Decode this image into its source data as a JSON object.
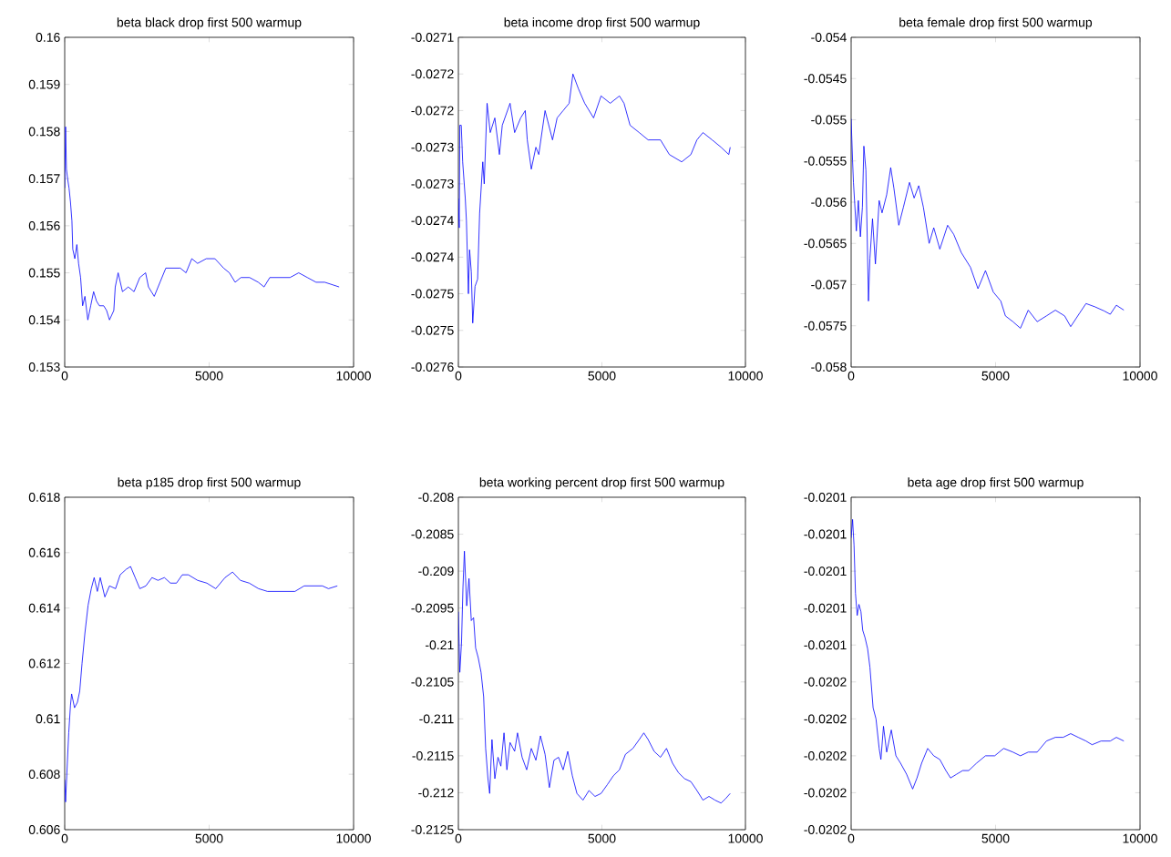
{
  "chart_data": [
    {
      "type": "line",
      "title": "beta black drop first 500 warmup",
      "xlim": [
        0,
        10000
      ],
      "xticks": [
        0,
        5000,
        10000
      ],
      "ylim": [
        0.153,
        0.16
      ],
      "yticks": [
        0.153,
        0.154,
        0.155,
        0.156,
        0.157,
        0.158,
        0.159,
        0.16
      ],
      "series": [
        {
          "color": "#0000ff",
          "x": [
            0,
            30,
            60,
            100,
            150,
            200,
            250,
            280,
            350,
            420,
            480,
            550,
            620,
            700,
            800,
            900,
            1000,
            1100,
            1200,
            1350,
            1450,
            1550,
            1700,
            1750,
            1850,
            2000,
            2200,
            2400,
            2600,
            2800,
            2900,
            3000,
            3100,
            3300,
            3500,
            3700,
            4000,
            4200,
            4400,
            4600,
            4900,
            5200,
            5500,
            5700,
            5900,
            6100,
            6400,
            6700,
            6900,
            7100,
            7400,
            7800,
            8100,
            8400,
            8700,
            9000,
            9500
          ],
          "values": [
            0.1568,
            0.1581,
            0.1572,
            0.157,
            0.1568,
            0.1565,
            0.1561,
            0.1555,
            0.1553,
            0.1556,
            0.1552,
            0.1549,
            0.1543,
            0.1545,
            0.154,
            0.1543,
            0.1546,
            0.1544,
            0.1543,
            0.1543,
            0.1542,
            0.154,
            0.1542,
            0.1547,
            0.155,
            0.1546,
            0.1547,
            0.1546,
            0.1549,
            0.155,
            0.1547,
            0.1546,
            0.1545,
            0.1548,
            0.1551,
            0.1551,
            0.1551,
            0.155,
            0.1553,
            0.1552,
            0.1553,
            0.1553,
            0.1551,
            0.155,
            0.1548,
            0.1549,
            0.1549,
            0.1548,
            0.1547,
            0.1549,
            0.1549,
            0.1549,
            0.155,
            0.1549,
            0.1548,
            0.1548,
            0.1547
          ]
        }
      ]
    },
    {
      "type": "line",
      "title": "beta income drop first 500 warmup",
      "xlim": [
        0,
        10000
      ],
      "xticks": [
        0,
        5000,
        10000
      ],
      "ylim": [
        -0.02755,
        -0.0271
      ],
      "yticks": [
        {
          "value": -0.02755,
          "label": "-0.0276"
        },
        {
          "value": -0.0275,
          "label": "-0.0275"
        },
        {
          "value": -0.02745,
          "label": "-0.0275"
        },
        {
          "value": -0.0274,
          "label": "-0.0274"
        },
        {
          "value": -0.02735,
          "label": "-0.0274"
        },
        {
          "value": -0.0273,
          "label": "-0.0273"
        },
        {
          "value": -0.02725,
          "label": "-0.0273"
        },
        {
          "value": -0.0272,
          "label": "-0.0272"
        },
        {
          "value": -0.02715,
          "label": "-0.0272"
        },
        {
          "value": -0.0271,
          "label": "-0.0271"
        }
      ],
      "series": [
        {
          "color": "#0000ff",
          "x": [
            0,
            30,
            50,
            100,
            150,
            240,
            280,
            350,
            390,
            450,
            500,
            580,
            670,
            740,
            850,
            900,
            1000,
            1110,
            1270,
            1430,
            1530,
            1800,
            1960,
            2170,
            2330,
            2400,
            2540,
            2700,
            2800,
            3020,
            3280,
            3440,
            3650,
            3860,
            3990,
            4180,
            4400,
            4710,
            4970,
            5290,
            5610,
            5770,
            5980,
            6300,
            6610,
            7040,
            7350,
            7780,
            8100,
            8310,
            8520,
            8840,
            9150,
            9420,
            9470
          ],
          "values": [
            -0.02732,
            -0.02736,
            -0.02722,
            -0.02722,
            -0.02727,
            -0.02732,
            -0.02735,
            -0.02745,
            -0.02739,
            -0.02742,
            -0.02749,
            -0.02744,
            -0.02743,
            -0.02734,
            -0.02727,
            -0.0273,
            -0.02719,
            -0.02723,
            -0.02721,
            -0.02726,
            -0.02722,
            -0.02719,
            -0.02723,
            -0.02721,
            -0.0272,
            -0.02724,
            -0.02728,
            -0.02725,
            -0.02726,
            -0.0272,
            -0.02724,
            -0.02721,
            -0.0272,
            -0.02719,
            -0.02715,
            -0.02717,
            -0.02719,
            -0.02721,
            -0.02718,
            -0.02719,
            -0.02718,
            -0.02719,
            -0.02722,
            -0.02723,
            -0.02724,
            -0.02724,
            -0.02726,
            -0.02727,
            -0.02726,
            -0.02724,
            -0.02723,
            -0.02724,
            -0.02725,
            -0.02726,
            -0.02725
          ]
        }
      ]
    },
    {
      "type": "line",
      "title": "beta female drop first 500 warmup",
      "xlim": [
        0,
        10000
      ],
      "xticks": [
        0,
        5000,
        10000
      ],
      "ylim": [
        -0.058,
        -0.054
      ],
      "yticks": [
        -0.058,
        -0.0575,
        -0.057,
        -0.0565,
        -0.056,
        -0.0555,
        -0.055,
        -0.0545,
        -0.054
      ],
      "series": [
        {
          "color": "#0000ff",
          "x": [
            0,
            50,
            80,
            180,
            250,
            320,
            390,
            440,
            510,
            600,
            650,
            740,
            840,
            970,
            1070,
            1230,
            1370,
            1480,
            1650,
            1810,
            2020,
            2180,
            2340,
            2500,
            2700,
            2860,
            3070,
            3340,
            3550,
            3810,
            4130,
            4390,
            4650,
            4920,
            5180,
            5340,
            5600,
            5860,
            6130,
            6440,
            6760,
            7070,
            7390,
            7600,
            7920,
            8130,
            8440,
            8760,
            8970,
            9180,
            9440
          ],
          "values": [
            -0.05499,
            -0.0555,
            -0.05576,
            -0.05635,
            -0.05598,
            -0.05642,
            -0.05606,
            -0.05532,
            -0.05561,
            -0.0572,
            -0.05668,
            -0.0562,
            -0.05675,
            -0.05598,
            -0.05613,
            -0.05591,
            -0.05558,
            -0.05583,
            -0.05628,
            -0.05606,
            -0.05576,
            -0.05595,
            -0.0558,
            -0.05606,
            -0.0565,
            -0.05631,
            -0.05657,
            -0.05628,
            -0.05639,
            -0.05661,
            -0.05679,
            -0.05705,
            -0.05683,
            -0.05709,
            -0.0572,
            -0.05738,
            -0.05745,
            -0.05753,
            -0.05731,
            -0.05745,
            -0.05738,
            -0.05731,
            -0.05738,
            -0.05751,
            -0.05734,
            -0.05723,
            -0.05727,
            -0.05732,
            -0.05736,
            -0.05725,
            -0.05731
          ]
        }
      ]
    },
    {
      "type": "line",
      "title": "beta p185 drop first 500 warmup",
      "xlim": [
        0,
        10000
      ],
      "xticks": [
        0,
        5000,
        10000
      ],
      "ylim": [
        0.606,
        0.618
      ],
      "yticks": [
        0.606,
        0.608,
        0.61,
        0.612,
        0.614,
        0.616,
        0.618
      ],
      "series": [
        {
          "color": "#0000ff",
          "x": [
            0,
            30,
            90,
            140,
            200,
            240,
            340,
            440,
            520,
            600,
            700,
            810,
            920,
            1020,
            1130,
            1230,
            1390,
            1550,
            1760,
            1920,
            2130,
            2280,
            2440,
            2600,
            2810,
            3020,
            3230,
            3450,
            3660,
            3870,
            4070,
            4280,
            4600,
            4920,
            5230,
            5550,
            5810,
            6080,
            6390,
            6710,
            7020,
            7340,
            7650,
            7970,
            8290,
            8600,
            8920,
            9130,
            9440
          ],
          "values": [
            0.6078,
            0.607,
            0.6084,
            0.6095,
            0.6105,
            0.6109,
            0.6104,
            0.6106,
            0.611,
            0.612,
            0.6131,
            0.6141,
            0.6147,
            0.6151,
            0.6146,
            0.6151,
            0.6144,
            0.6148,
            0.6147,
            0.6152,
            0.6154,
            0.6155,
            0.6151,
            0.6147,
            0.6148,
            0.6151,
            0.615,
            0.6151,
            0.6149,
            0.6149,
            0.6152,
            0.6152,
            0.615,
            0.6149,
            0.6147,
            0.6151,
            0.6153,
            0.615,
            0.6149,
            0.6147,
            0.6146,
            0.6146,
            0.6146,
            0.6146,
            0.6148,
            0.6148,
            0.6148,
            0.6147,
            0.6148
          ]
        }
      ]
    },
    {
      "type": "line",
      "title": "beta working percent drop first 500 warmup",
      "xlim": [
        0,
        10000
      ],
      "xticks": [
        0,
        5000,
        10000
      ],
      "ylim": [
        -0.2125,
        -0.208
      ],
      "yticks": [
        -0.2125,
        -0.212,
        -0.2115,
        -0.211,
        -0.2105,
        -0.21,
        -0.2095,
        -0.209,
        -0.2085,
        -0.208
      ],
      "series": [
        {
          "color": "#0000ff",
          "x": [
            0,
            50,
            110,
            160,
            210,
            290,
            370,
            450,
            530,
            600,
            690,
            790,
            880,
            950,
            1030,
            1090,
            1170,
            1270,
            1380,
            1480,
            1590,
            1690,
            1800,
            1960,
            2060,
            2220,
            2380,
            2540,
            2700,
            2860,
            3020,
            3170,
            3330,
            3490,
            3650,
            3810,
            3970,
            4130,
            4340,
            4550,
            4760,
            4970,
            5190,
            5400,
            5610,
            5820,
            6080,
            6300,
            6460,
            6610,
            6820,
            7040,
            7250,
            7460,
            7670,
            7880,
            8100,
            8310,
            8520,
            8730,
            8940,
            9150,
            9310,
            9470
          ],
          "values": [
            -0.20955,
            -0.21037,
            -0.20996,
            -0.20922,
            -0.20873,
            -0.20947,
            -0.2091,
            -0.20967,
            -0.20963,
            -0.21004,
            -0.21017,
            -0.21037,
            -0.2107,
            -0.2114,
            -0.21181,
            -0.21201,
            -0.21128,
            -0.21181,
            -0.21152,
            -0.21164,
            -0.21119,
            -0.21169,
            -0.21132,
            -0.21144,
            -0.21119,
            -0.21152,
            -0.21169,
            -0.2114,
            -0.21156,
            -0.21123,
            -0.21148,
            -0.21193,
            -0.21156,
            -0.21152,
            -0.21169,
            -0.21144,
            -0.21177,
            -0.21201,
            -0.2121,
            -0.21197,
            -0.21205,
            -0.21201,
            -0.21189,
            -0.21177,
            -0.21169,
            -0.21148,
            -0.2114,
            -0.21128,
            -0.21119,
            -0.21128,
            -0.21144,
            -0.21152,
            -0.2114,
            -0.2116,
            -0.21173,
            -0.21181,
            -0.21185,
            -0.21197,
            -0.2121,
            -0.21205,
            -0.2121,
            -0.21214,
            -0.21208,
            -0.21201
          ]
        }
      ]
    },
    {
      "type": "line",
      "title": "beta age drop first 500 warmup",
      "xlim": [
        0,
        10000
      ],
      "xticks": [
        0,
        5000,
        10000
      ],
      "ylim": [
        -0.02019,
        -0.0201
      ],
      "yticks": [
        {
          "value": -0.02019,
          "label": "-0.0202"
        },
        {
          "value": -0.02018,
          "label": "-0.0202"
        },
        {
          "value": -0.02017,
          "label": "-0.0202"
        },
        {
          "value": -0.02016,
          "label": "-0.0202"
        },
        {
          "value": -0.02015,
          "label": "-0.0202"
        },
        {
          "value": -0.02014,
          "label": "-0.0201"
        },
        {
          "value": -0.02013,
          "label": "-0.0201"
        },
        {
          "value": -0.02012,
          "label": "-0.0201"
        },
        {
          "value": -0.02011,
          "label": "-0.0201"
        },
        {
          "value": -0.0201,
          "label": "-0.0201"
        }
      ],
      "series": [
        {
          "color": "#0000ff",
          "x": [
            0,
            50,
            100,
            150,
            210,
            270,
            340,
            400,
            480,
            570,
            650,
            760,
            860,
            970,
            1030,
            1120,
            1230,
            1390,
            1550,
            1710,
            1920,
            2130,
            2280,
            2440,
            2650,
            2860,
            3070,
            3280,
            3440,
            3650,
            3860,
            4070,
            4340,
            4650,
            4970,
            5280,
            5600,
            5860,
            6130,
            6440,
            6760,
            7070,
            7340,
            7600,
            7860,
            8130,
            8340,
            8650,
            8970,
            9180,
            9440
          ],
          "values": [
            -0.020111,
            -0.020106,
            -0.020113,
            -0.020126,
            -0.020132,
            -0.020129,
            -0.020131,
            -0.020136,
            -0.020138,
            -0.020141,
            -0.020146,
            -0.020157,
            -0.02016,
            -0.020168,
            -0.020171,
            -0.020162,
            -0.020169,
            -0.020163,
            -0.02017,
            -0.020172,
            -0.020175,
            -0.020179,
            -0.020176,
            -0.020172,
            -0.020168,
            -0.02017,
            -0.020171,
            -0.020174,
            -0.020176,
            -0.020175,
            -0.020174,
            -0.020174,
            -0.020172,
            -0.02017,
            -0.02017,
            -0.020168,
            -0.020169,
            -0.02017,
            -0.020169,
            -0.020169,
            -0.020166,
            -0.020165,
            -0.020165,
            -0.020164,
            -0.020165,
            -0.020166,
            -0.020167,
            -0.020166,
            -0.020166,
            -0.020165,
            -0.020166
          ]
        }
      ]
    }
  ]
}
